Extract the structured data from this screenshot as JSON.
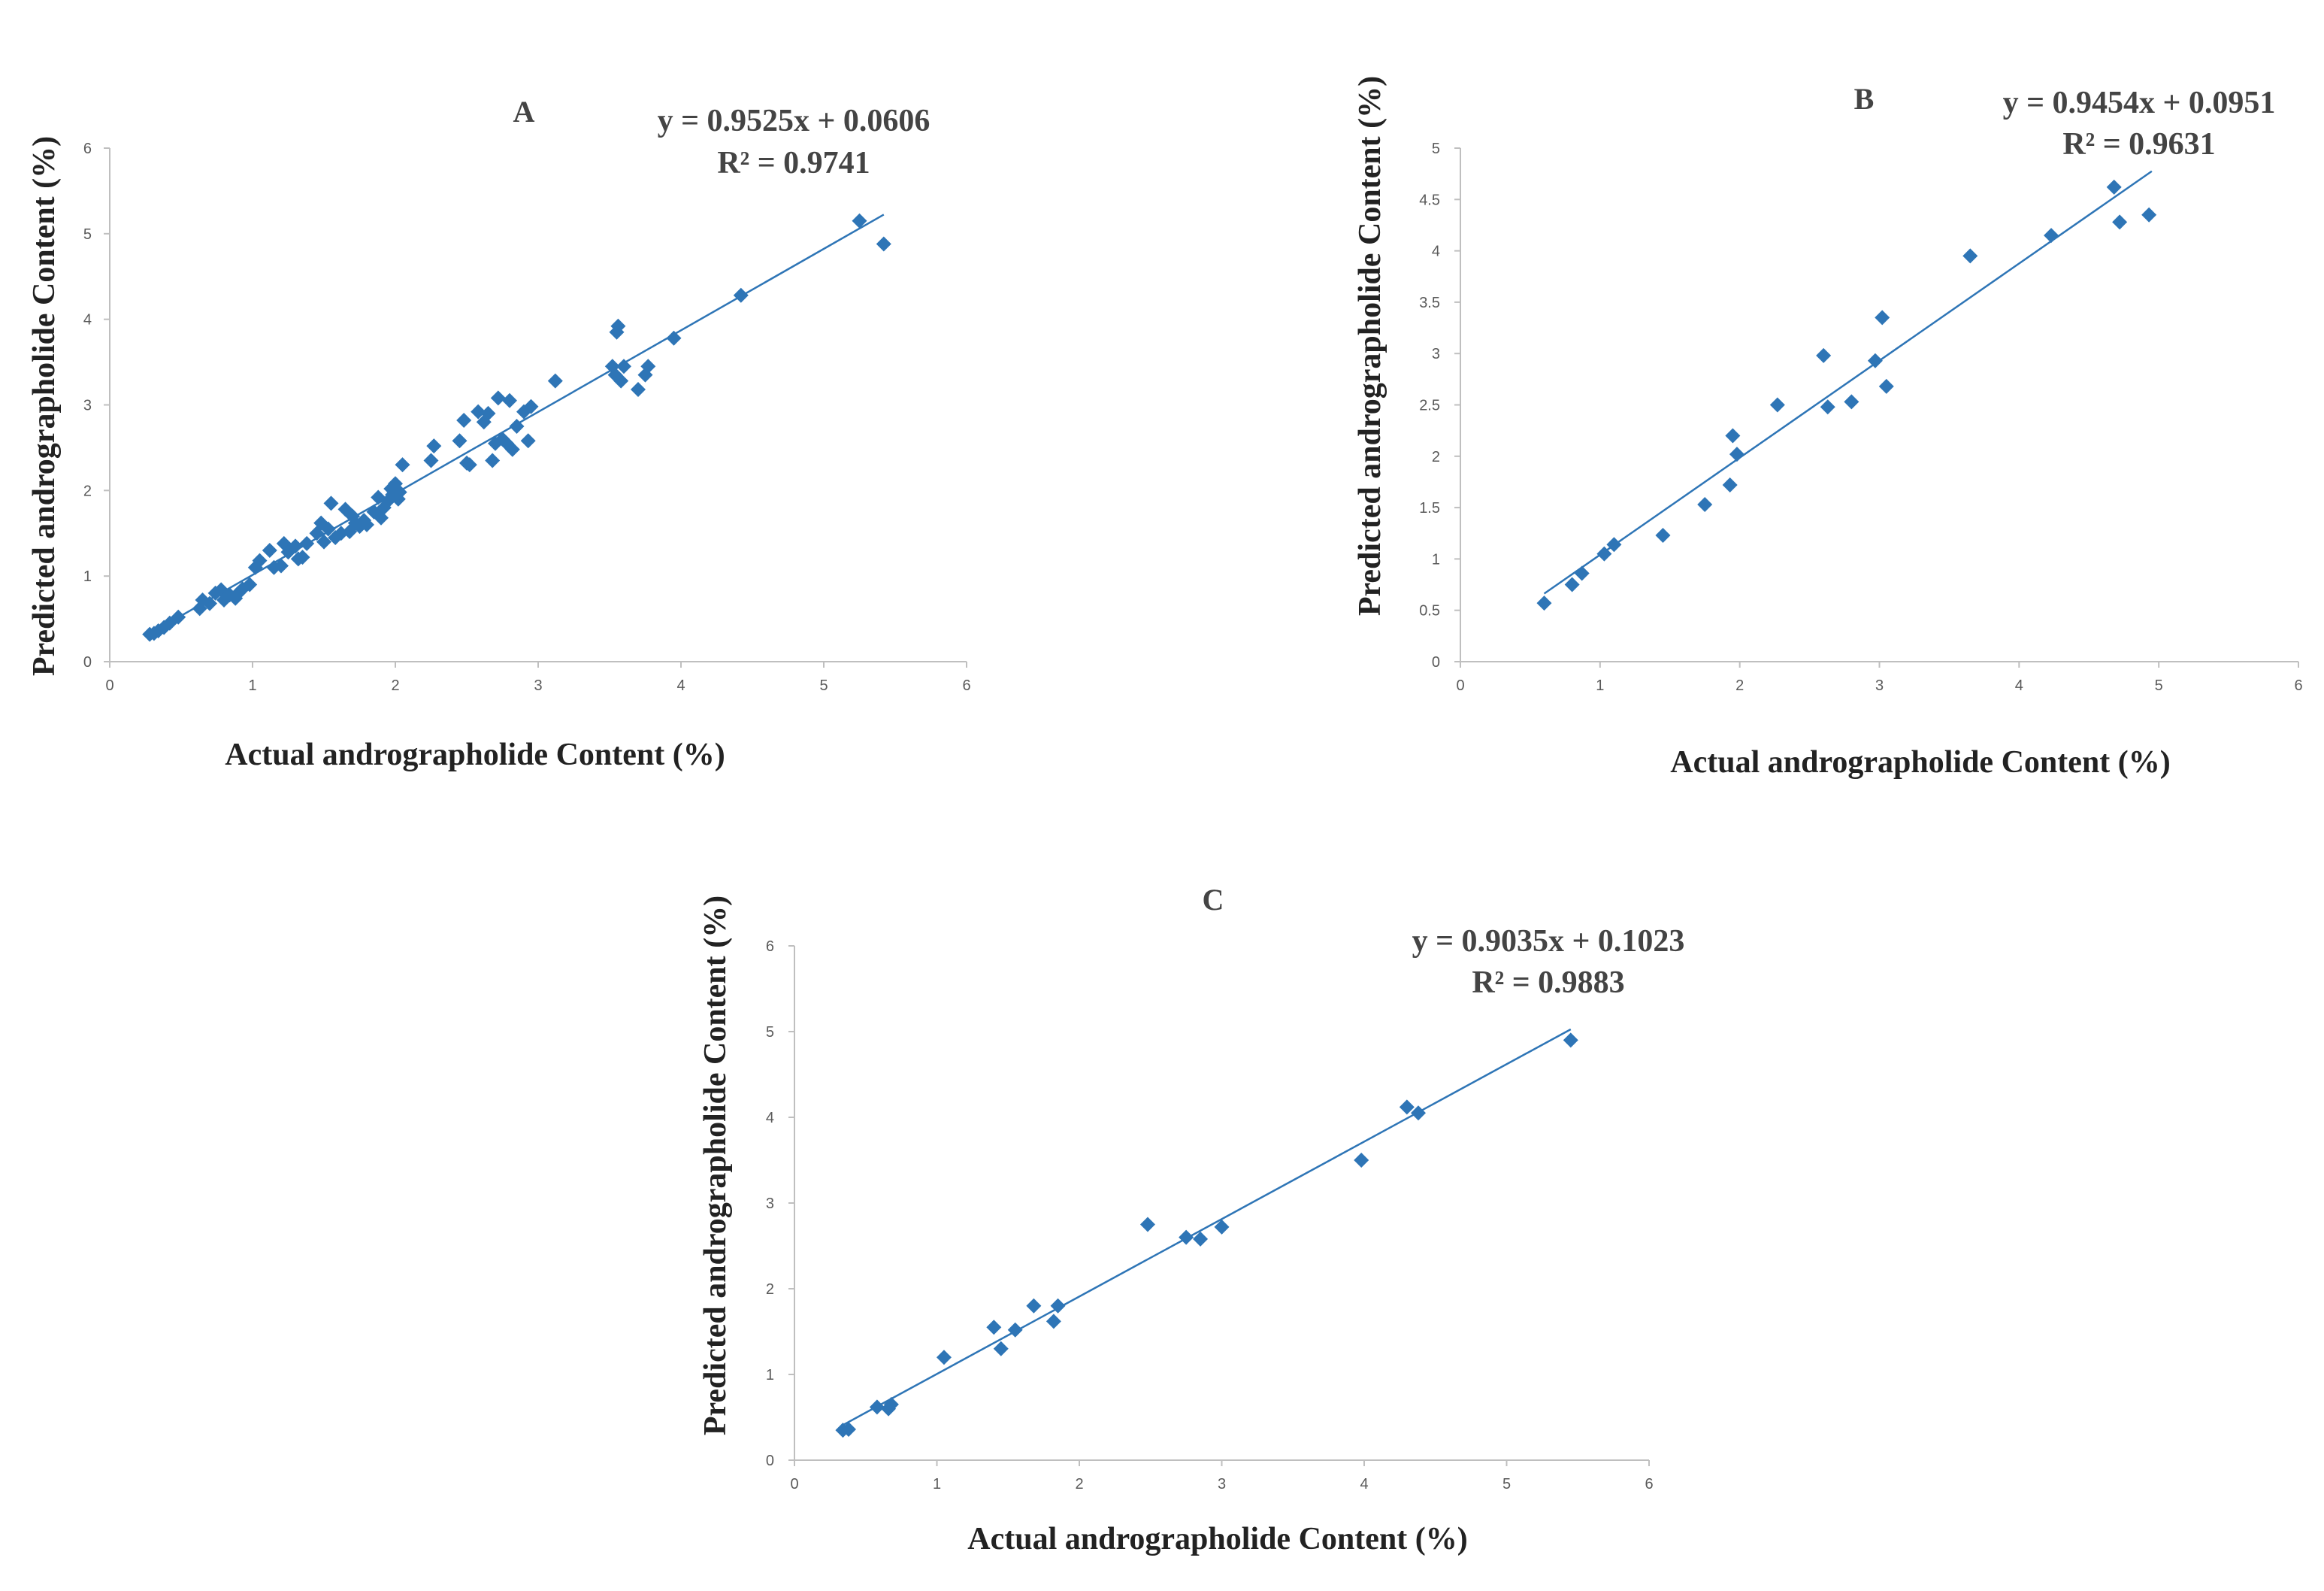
{
  "colors": {
    "marker": "#2e75b6",
    "trendline": "#2e75b6",
    "axis": "#bfbfbf",
    "text": "#222222"
  },
  "chart_data": [
    {
      "type": "scatter",
      "panel": "A",
      "title": "A",
      "equation": "y = 0.9525x + 0.0606",
      "r_squared": "R² = 0.9741",
      "xlabel": "Actual andrographolide Content (%)",
      "ylabel": "Predicted andrographolide Content (%)",
      "xlim": [
        0,
        6
      ],
      "ylim": [
        0,
        6
      ],
      "x_ticks": [
        "0",
        "1",
        "2",
        "3",
        "4",
        "5",
        "6"
      ],
      "y_ticks": [
        "0",
        "1",
        "2",
        "3",
        "4",
        "5",
        "6"
      ],
      "trendline": {
        "slope": 0.9525,
        "intercept": 0.0606,
        "x_range": [
          0.28,
          5.42
        ]
      },
      "points": [
        [
          0.28,
          0.32
        ],
        [
          0.31,
          0.33
        ],
        [
          0.34,
          0.36
        ],
        [
          0.38,
          0.4
        ],
        [
          0.42,
          0.45
        ],
        [
          0.48,
          0.52
        ],
        [
          0.63,
          0.62
        ],
        [
          0.65,
          0.72
        ],
        [
          0.7,
          0.68
        ],
        [
          0.74,
          0.8
        ],
        [
          0.78,
          0.84
        ],
        [
          0.8,
          0.72
        ],
        [
          0.84,
          0.78
        ],
        [
          0.88,
          0.74
        ],
        [
          0.9,
          0.8
        ],
        [
          0.93,
          0.85
        ],
        [
          0.98,
          0.9
        ],
        [
          1.02,
          1.1
        ],
        [
          1.05,
          1.18
        ],
        [
          1.12,
          1.3
        ],
        [
          1.15,
          1.1
        ],
        [
          1.2,
          1.12
        ],
        [
          1.22,
          1.38
        ],
        [
          1.25,
          1.28
        ],
        [
          1.3,
          1.35
        ],
        [
          1.32,
          1.2
        ],
        [
          1.35,
          1.22
        ],
        [
          1.38,
          1.38
        ],
        [
          1.45,
          1.5
        ],
        [
          1.48,
          1.62
        ],
        [
          1.5,
          1.4
        ],
        [
          1.53,
          1.55
        ],
        [
          1.55,
          1.85
        ],
        [
          1.58,
          1.45
        ],
        [
          1.62,
          1.5
        ],
        [
          1.65,
          1.78
        ],
        [
          1.68,
          1.52
        ],
        [
          1.7,
          1.7
        ],
        [
          1.72,
          1.62
        ],
        [
          1.75,
          1.58
        ],
        [
          1.78,
          1.65
        ],
        [
          1.8,
          1.6
        ],
        [
          1.85,
          1.75
        ],
        [
          1.88,
          1.92
        ],
        [
          1.9,
          1.68
        ],
        [
          1.92,
          1.8
        ],
        [
          1.95,
          1.88
        ],
        [
          1.97,
          2.02
        ],
        [
          1.98,
          1.95
        ],
        [
          2.0,
          2.08
        ],
        [
          2.02,
          1.9
        ],
        [
          2.03,
          1.98
        ],
        [
          2.05,
          2.3
        ],
        [
          2.25,
          2.35
        ],
        [
          2.27,
          2.52
        ],
        [
          2.45,
          2.58
        ],
        [
          2.48,
          2.82
        ],
        [
          2.5,
          2.32
        ],
        [
          2.52,
          2.3
        ],
        [
          2.58,
          2.92
        ],
        [
          2.62,
          2.8
        ],
        [
          2.65,
          2.9
        ],
        [
          2.68,
          2.35
        ],
        [
          2.7,
          2.55
        ],
        [
          2.72,
          3.08
        ],
        [
          2.75,
          2.6
        ],
        [
          2.78,
          2.55
        ],
        [
          2.8,
          3.05
        ],
        [
          2.82,
          2.48
        ],
        [
          2.85,
          2.75
        ],
        [
          2.9,
          2.92
        ],
        [
          2.93,
          2.58
        ],
        [
          2.95,
          2.98
        ],
        [
          3.12,
          3.28
        ],
        [
          3.52,
          3.45
        ],
        [
          3.54,
          3.35
        ],
        [
          3.55,
          3.85
        ],
        [
          3.56,
          3.92
        ],
        [
          3.58,
          3.28
        ],
        [
          3.6,
          3.45
        ],
        [
          3.7,
          3.18
        ],
        [
          3.75,
          3.35
        ],
        [
          3.77,
          3.45
        ],
        [
          3.95,
          3.78
        ],
        [
          4.42,
          4.28
        ],
        [
          5.25,
          5.15
        ],
        [
          5.42,
          4.88
        ]
      ]
    },
    {
      "type": "scatter",
      "panel": "B",
      "title": "B",
      "equation": "y = 0.9454x + 0.0951",
      "r_squared": "R² = 0.9631",
      "xlabel": "Actual andrographolide Content (%)",
      "ylabel": "Predicted andrographolide Content (%)",
      "xlim": [
        0,
        6
      ],
      "ylim": [
        0,
        5
      ],
      "x_ticks": [
        "0",
        "1",
        "2",
        "3",
        "4",
        "5",
        "6"
      ],
      "y_ticks": [
        "0",
        "0.5",
        "1",
        "1.5",
        "2",
        "2.5",
        "3",
        "3.5",
        "4",
        "4.5",
        "5"
      ],
      "trendline": {
        "slope": 0.9454,
        "intercept": 0.0951,
        "x_range": [
          0.6,
          4.95
        ]
      },
      "points": [
        [
          0.6,
          0.57
        ],
        [
          0.8,
          0.75
        ],
        [
          0.87,
          0.86
        ],
        [
          1.03,
          1.05
        ],
        [
          1.1,
          1.14
        ],
        [
          1.45,
          1.23
        ],
        [
          1.75,
          1.53
        ],
        [
          1.93,
          1.72
        ],
        [
          1.95,
          2.2
        ],
        [
          1.98,
          2.02
        ],
        [
          2.27,
          2.5
        ],
        [
          2.6,
          2.98
        ],
        [
          2.63,
          2.48
        ],
        [
          2.8,
          2.53
        ],
        [
          2.97,
          2.93
        ],
        [
          3.02,
          3.35
        ],
        [
          3.05,
          2.68
        ],
        [
          3.65,
          3.95
        ],
        [
          4.23,
          4.15
        ],
        [
          4.68,
          4.62
        ],
        [
          4.72,
          4.28
        ],
        [
          4.93,
          4.35
        ]
      ]
    },
    {
      "type": "scatter",
      "panel": "C",
      "title": "C",
      "equation": "y = 0.9035x + 0.1023",
      "r_squared": "R² = 0.9883",
      "xlabel": "Actual andrographolide Content (%)",
      "ylabel": "Predicted andrographolide Content (%)",
      "xlim": [
        0,
        6
      ],
      "ylim": [
        0,
        6
      ],
      "x_ticks": [
        "0",
        "1",
        "2",
        "3",
        "4",
        "5",
        "6"
      ],
      "y_ticks": [
        "0",
        "1",
        "2",
        "3",
        "4",
        "5",
        "6"
      ],
      "trendline": {
        "slope": 0.9035,
        "intercept": 0.1023,
        "x_range": [
          0.34,
          5.45
        ]
      },
      "points": [
        [
          0.34,
          0.35
        ],
        [
          0.38,
          0.36
        ],
        [
          0.58,
          0.62
        ],
        [
          0.66,
          0.6
        ],
        [
          0.68,
          0.65
        ],
        [
          1.05,
          1.2
        ],
        [
          1.4,
          1.55
        ],
        [
          1.45,
          1.3
        ],
        [
          1.55,
          1.52
        ],
        [
          1.68,
          1.8
        ],
        [
          1.82,
          1.62
        ],
        [
          1.85,
          1.8
        ],
        [
          2.48,
          2.75
        ],
        [
          2.75,
          2.6
        ],
        [
          2.85,
          2.58
        ],
        [
          3.0,
          2.72
        ],
        [
          3.98,
          3.5
        ],
        [
          4.3,
          4.12
        ],
        [
          4.38,
          4.05
        ],
        [
          5.45,
          4.9
        ]
      ]
    }
  ]
}
